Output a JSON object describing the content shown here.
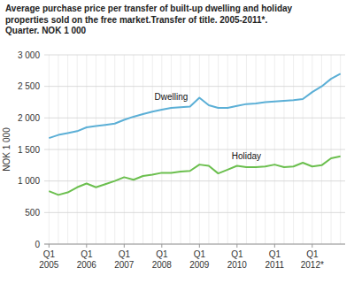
{
  "chart_data": {
    "type": "line",
    "title": "Average purchase price per transfer of built-up dwelling and holiday\nproperties sold on the free market.Transfer of title. 2005-2011*.\nQuarter. NOK 1 000",
    "y_label": "NOK 1 000",
    "categories": [
      "Q1\n2005",
      null,
      null,
      null,
      "Q1\n2006",
      null,
      null,
      null,
      "Q1\n2007",
      null,
      null,
      null,
      "Q1\n2008",
      null,
      null,
      null,
      "Q1\n2009",
      null,
      null,
      null,
      "Q1\n2010",
      null,
      null,
      null,
      "Q1\n2011",
      null,
      null,
      null,
      "Q1\n2012*",
      null,
      null,
      null
    ],
    "series": [
      {
        "name": "Dwelling",
        "color": "#5BAFD6",
        "values": [
          1680,
          1730,
          1760,
          1790,
          1850,
          1870,
          1890,
          1910,
          1970,
          2020,
          2060,
          2100,
          2130,
          2160,
          2170,
          2180,
          2320,
          2200,
          2160,
          2160,
          2190,
          2220,
          2230,
          2250,
          2260,
          2270,
          2280,
          2300,
          2410,
          2500,
          2620,
          2700
        ]
      },
      {
        "name": "Holiday",
        "color": "#6BBF4E",
        "values": [
          840,
          780,
          820,
          900,
          960,
          900,
          950,
          1000,
          1060,
          1020,
          1080,
          1100,
          1130,
          1130,
          1150,
          1160,
          1260,
          1240,
          1120,
          1180,
          1240,
          1220,
          1220,
          1230,
          1260,
          1220,
          1230,
          1290,
          1230,
          1250,
          1360,
          1390
        ]
      }
    ],
    "ylim": [
      0,
      3000
    ],
    "yticks": [
      0,
      500,
      {
        "value": 1000,
        "label": "1 000"
      },
      {
        "value": 1500,
        "label": "1 500"
      },
      {
        "value": 2000,
        "label": "2 000"
      },
      {
        "value": 2500,
        "label": "2 500"
      },
      {
        "value": 3000,
        "label": "3 000"
      }
    ],
    "grid": true
  }
}
